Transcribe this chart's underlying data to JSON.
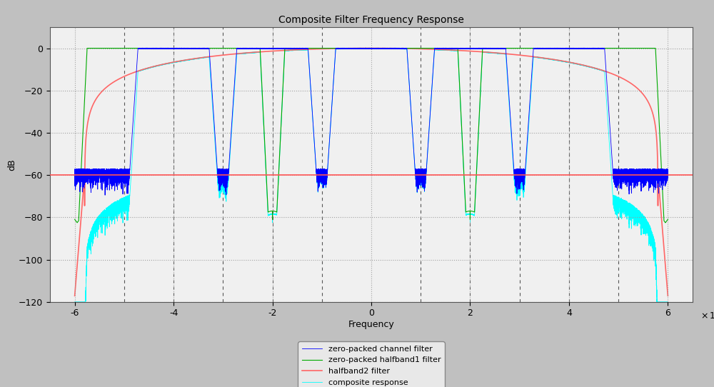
{
  "title": "Composite Filter Frequency Response",
  "xlabel": "Frequency",
  "ylabel": "dB",
  "xlim": [
    -65000000.0,
    65000000.0
  ],
  "ylim": [
    -120,
    10
  ],
  "yticks": [
    0,
    -20,
    -40,
    -60,
    -80,
    -100,
    -120
  ],
  "xticks": [
    -60000000.0,
    -40000000.0,
    -20000000.0,
    0,
    20000000.0,
    40000000.0,
    60000000.0
  ],
  "xtick_labels": [
    "-6",
    "-4",
    "-2",
    "0",
    "2",
    "4",
    "6"
  ],
  "bg_color": "#c0c0c0",
  "plot_bg_color": "#f0f0f0",
  "grid_color": "#888888",
  "legend_labels": [
    "zero-packed channel filter",
    "zero-packed halfband1 filter",
    "halfband2 filter",
    "composite response"
  ],
  "hline_y": -60,
  "hline_color": "#ff5555",
  "dashed_vlines": [
    -50000000.0,
    -40000000.0,
    -30000000.0,
    -20000000.0,
    -10000000.0,
    10000000.0,
    20000000.0,
    30000000.0,
    40000000.0,
    50000000.0
  ]
}
